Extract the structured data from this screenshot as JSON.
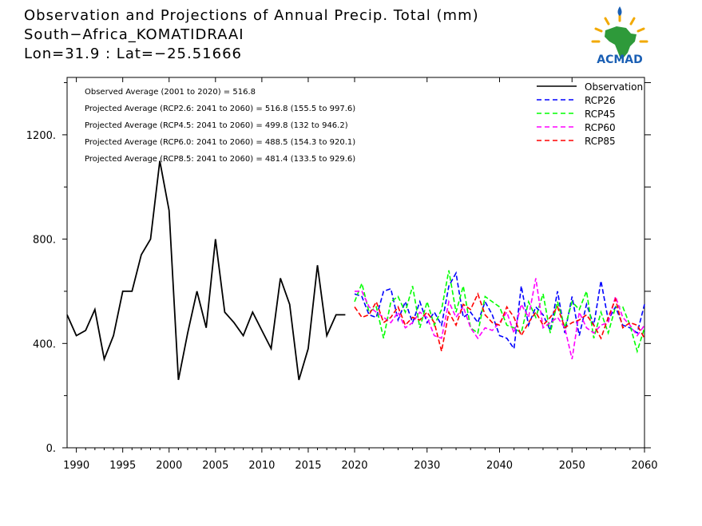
{
  "header": {
    "title": "Observation and Projections of Annual Precip. Total (mm)",
    "location": "South−Africa_KOMATIDRAAI",
    "coords": "Lon=31.9 : Lat=−25.51666"
  },
  "logo": {
    "text": "ACMAD"
  },
  "chart_data": {
    "type": "line",
    "xlim": [
      1989,
      2060
    ],
    "ylim": [
      0,
      1420
    ],
    "x_ticks": [
      1990,
      1995,
      2000,
      2005,
      2010,
      2015,
      2020,
      2030,
      2040,
      2050,
      2060
    ],
    "y_ticks": [
      0,
      400,
      800,
      1200
    ],
    "y_tick_labels": [
      "0.",
      "400.",
      "800.",
      "1200."
    ],
    "grid": false,
    "legend_position": "top-right",
    "annotations": [
      "Observed Average (2001 to 2020) = 516.8",
      "Projected Average (RCP2.6: 2041 to 2060) = 516.8 (155.5 to 997.6)",
      "Projected Average (RCP4.5: 2041 to 2060) = 499.8 (132 to 946.2)",
      "Projected Average (RCP6.0: 2041 to 2060) = 488.5 (154.3 to 920.1)",
      "Projected Average (RCP8.5: 2041 to 2060) = 481.4 (133.5 to 929.6)"
    ],
    "series": [
      {
        "name": "Observation",
        "color": "#000000",
        "dash": false,
        "x": [
          1989,
          1990,
          1991,
          1992,
          1993,
          1994,
          1995,
          1996,
          1997,
          1998,
          1999,
          2000,
          2001,
          2002,
          2003,
          2004,
          2005,
          2006,
          2007,
          2008,
          2009,
          2010,
          2011,
          2012,
          2013,
          2014,
          2015,
          2016,
          2017,
          2018,
          2019
        ],
        "y": [
          510,
          430,
          450,
          530,
          340,
          430,
          600,
          600,
          740,
          800,
          1100,
          910,
          260,
          440,
          600,
          460,
          800,
          520,
          480,
          430,
          520,
          450,
          380,
          650,
          550,
          260,
          380,
          700,
          430,
          510,
          510
        ]
      },
      {
        "name": "RCP26",
        "color": "#0000ff",
        "dash": true,
        "x": [
          2020,
          2021,
          2022,
          2023,
          2024,
          2025,
          2026,
          2027,
          2028,
          2029,
          2030,
          2031,
          2032,
          2033,
          2034,
          2035,
          2036,
          2037,
          2038,
          2039,
          2040,
          2041,
          2042,
          2043,
          2044,
          2045,
          2046,
          2047,
          2048,
          2049,
          2050,
          2051,
          2052,
          2053,
          2054,
          2055,
          2056,
          2057,
          2058,
          2059,
          2060
        ],
        "y": [
          590,
          580,
          510,
          500,
          600,
          610,
          490,
          560,
          480,
          560,
          480,
          520,
          470,
          620,
          670,
          500,
          520,
          480,
          560,
          510,
          430,
          420,
          380,
          620,
          470,
          540,
          510,
          450,
          600,
          440,
          580,
          430,
          550,
          470,
          640,
          490,
          540,
          470,
          460,
          440,
          550
        ]
      },
      {
        "name": "RCP45",
        "color": "#00ff00",
        "dash": true,
        "x": [
          2020,
          2021,
          2022,
          2023,
          2024,
          2025,
          2026,
          2027,
          2028,
          2029,
          2030,
          2031,
          2032,
          2033,
          2034,
          2035,
          2036,
          2037,
          2038,
          2039,
          2040,
          2041,
          2042,
          2043,
          2044,
          2045,
          2046,
          2047,
          2048,
          2049,
          2050,
          2051,
          2052,
          2053,
          2054,
          2055,
          2056,
          2057,
          2058,
          2059,
          2060
        ],
        "y": [
          560,
          630,
          520,
          540,
          420,
          560,
          580,
          520,
          620,
          460,
          560,
          470,
          530,
          680,
          520,
          620,
          460,
          440,
          580,
          560,
          540,
          470,
          460,
          440,
          560,
          500,
          590,
          440,
          560,
          460,
          560,
          530,
          600,
          420,
          520,
          440,
          540,
          540,
          470,
          370,
          460
        ]
      },
      {
        "name": "RCP60",
        "color": "#ff00ff",
        "dash": true,
        "x": [
          2020,
          2021,
          2022,
          2023,
          2024,
          2025,
          2026,
          2027,
          2028,
          2029,
          2030,
          2031,
          2032,
          2033,
          2034,
          2035,
          2036,
          2037,
          2038,
          2039,
          2040,
          2041,
          2042,
          2043,
          2044,
          2045,
          2046,
          2047,
          2048,
          2049,
          2050,
          2051,
          2052,
          2053,
          2054,
          2055,
          2056,
          2057,
          2058,
          2059,
          2060
        ],
        "y": [
          600,
          600,
          540,
          520,
          500,
          480,
          520,
          460,
          480,
          520,
          500,
          430,
          420,
          560,
          500,
          540,
          460,
          420,
          460,
          450,
          480,
          520,
          440,
          550,
          500,
          650,
          460,
          480,
          500,
          460,
          340,
          520,
          460,
          440,
          470,
          480,
          580,
          500,
          470,
          430,
          470
        ]
      },
      {
        "name": "RCP85",
        "color": "#ff0000",
        "dash": true,
        "x": [
          2020,
          2021,
          2022,
          2023,
          2024,
          2025,
          2026,
          2027,
          2028,
          2029,
          2030,
          2031,
          2032,
          2033,
          2034,
          2035,
          2036,
          2037,
          2038,
          2039,
          2040,
          2041,
          2042,
          2043,
          2044,
          2045,
          2046,
          2047,
          2048,
          2049,
          2050,
          2051,
          2052,
          2053,
          2054,
          2055,
          2056,
          2057,
          2058,
          2059,
          2060
        ],
        "y": [
          540,
          500,
          510,
          560,
          480,
          500,
          540,
          470,
          500,
          490,
          520,
          480,
          370,
          520,
          470,
          550,
          530,
          590,
          510,
          480,
          470,
          540,
          500,
          430,
          480,
          520,
          470,
          500,
          540,
          460,
          480,
          490,
          510,
          470,
          420,
          500,
          570,
          460,
          480,
          470,
          420
        ]
      }
    ]
  }
}
